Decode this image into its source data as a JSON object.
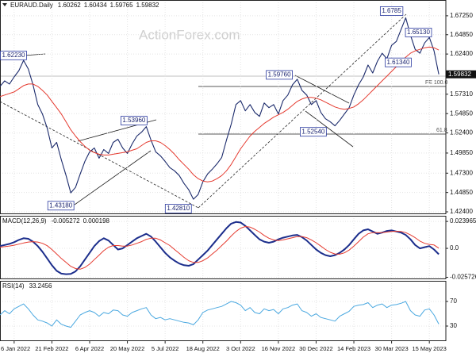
{
  "chart_data": [
    {
      "type": "line",
      "title": "EURAUD.Daily",
      "ohlc": [
        1.60262,
        1.60434,
        1.59765,
        1.59832
      ],
      "watermark": "ActionForex.com",
      "series": [
        {
          "color": "#1b2a6b",
          "values": [
            1.583,
            1.59,
            1.586,
            1.595,
            1.603,
            1.616,
            1.605,
            1.585,
            1.56,
            1.548,
            1.53,
            1.505,
            1.512,
            1.49,
            1.47,
            1.448,
            1.455,
            1.472,
            1.488,
            1.5,
            1.505,
            1.492,
            1.503,
            1.498,
            1.512,
            1.516,
            1.505,
            1.498,
            1.51,
            1.52,
            1.525,
            1.532,
            1.515,
            1.5,
            1.495,
            1.488,
            1.48,
            1.476,
            1.47,
            1.46,
            1.452,
            1.44,
            1.446,
            1.462,
            1.472,
            1.478,
            1.485,
            1.493,
            1.515,
            1.535,
            1.56,
            1.565,
            1.552,
            1.56,
            1.55,
            1.545,
            1.562,
            1.556,
            1.56,
            1.548,
            1.565,
            1.572,
            1.585,
            1.592,
            1.578,
            1.572,
            1.56,
            1.565,
            1.55,
            1.542,
            1.538,
            1.533,
            1.54,
            1.548,
            1.556,
            1.572,
            1.585,
            1.595,
            1.61,
            1.6,
            1.615,
            1.625,
            1.618,
            1.635,
            1.64,
            1.655,
            1.67,
            1.648,
            1.63,
            1.625,
            1.638,
            1.645,
            1.628,
            1.59832
          ]
        },
        {
          "color": "#e53a2f",
          "values": [
            1.57,
            1.572,
            1.574,
            1.576,
            1.58,
            1.584,
            1.586,
            1.586,
            1.583,
            1.578,
            1.572,
            1.564,
            1.556,
            1.548,
            1.538,
            1.528,
            1.52,
            1.513,
            1.507,
            1.502,
            1.499,
            1.497,
            1.496,
            1.496,
            1.497,
            1.498,
            1.499,
            1.5,
            1.502,
            1.504,
            1.508,
            1.512,
            1.514,
            1.514,
            1.512,
            1.508,
            1.503,
            1.497,
            1.49,
            1.484,
            1.478,
            1.471,
            1.466,
            1.463,
            1.462,
            1.463,
            1.466,
            1.47,
            1.476,
            1.484,
            1.494,
            1.504,
            1.512,
            1.52,
            1.526,
            1.531,
            1.536,
            1.54,
            1.544,
            1.547,
            1.55,
            1.554,
            1.559,
            1.564,
            1.567,
            1.569,
            1.569,
            1.568,
            1.566,
            1.563,
            1.56,
            1.557,
            1.555,
            1.554,
            1.555,
            1.557,
            1.561,
            1.566,
            1.572,
            1.578,
            1.584,
            1.59,
            1.596,
            1.602,
            1.608,
            1.614,
            1.62,
            1.625,
            1.628,
            1.63,
            1.632,
            1.633,
            1.632,
            1.629
          ]
        }
      ],
      "xlim": [
        0,
        94.5
      ],
      "ylim": [
        1.421,
        1.6925
      ],
      "yticks": [
        {
          "value": 1.6725,
          "label": "1.67250"
        },
        {
          "value": 1.6485,
          "label": "1.64850"
        },
        {
          "value": 1.624,
          "label": "1.62400"
        },
        {
          "value": 1.5731,
          "label": "1.57310"
        },
        {
          "value": 1.5485,
          "label": "1.54850"
        },
        {
          "value": 1.524,
          "label": "1.52400"
        },
        {
          "value": 1.4985,
          "label": "1.49850"
        },
        {
          "value": 1.473,
          "label": "1.47300"
        },
        {
          "value": 1.4485,
          "label": "1.44850"
        },
        {
          "value": 1.424,
          "label": "1.42400"
        }
      ],
      "annotations": [
        {
          "x": 83,
          "value": 1.6785
        },
        {
          "x": 88.7,
          "value": 1.6513,
          "label": "1.65130"
        },
        {
          "x": 84.4,
          "value": 1.6134,
          "label": "1.61340"
        },
        {
          "x": 2.5,
          "value": 1.6223,
          "label": "1.62230"
        },
        {
          "x": 59.2,
          "value": 1.5976,
          "label": "1.59760"
        },
        {
          "x": 28.4,
          "value": 1.5396,
          "label": "1.53960"
        },
        {
          "x": 66.4,
          "value": 1.5254,
          "label": "1.52540"
        },
        {
          "x": 12.9,
          "value": 1.4318,
          "label": "1.43180"
        },
        {
          "x": 37.8,
          "value": 1.4281,
          "label": "1.42810"
        }
      ],
      "fib_labels": [
        "FE 100.0",
        "61.8"
      ]
    },
    {
      "type": "line",
      "title": "MACD(12,26,9)",
      "series": [
        {
          "color": "#1c2e8c",
          "values": [
            0.0021,
            0.003,
            0.004,
            0.0055,
            0.0075,
            0.009,
            0.0085,
            0.006,
            0.002,
            -0.003,
            -0.009,
            -0.015,
            -0.02,
            -0.0225,
            -0.023,
            -0.0228,
            -0.0205,
            -0.016,
            -0.01,
            -0.004,
            0.002,
            0.0065,
            0.009,
            0.007,
            0.003,
            -0.001,
            0.0,
            0.003,
            0.006,
            0.009,
            0.011,
            0.013,
            0.0105,
            0.006,
            0.001,
            -0.004,
            -0.008,
            -0.011,
            -0.0135,
            -0.015,
            -0.0155,
            -0.014,
            -0.01,
            -0.006,
            -0.002,
            0.003,
            0.008,
            0.013,
            0.018,
            0.022,
            0.0235,
            0.023,
            0.02,
            0.016,
            0.012,
            0.008,
            0.006,
            0.005,
            0.006,
            0.008,
            0.0095,
            0.0105,
            0.0115,
            0.012,
            0.01,
            0.007,
            0.003,
            -0.001,
            -0.004,
            -0.006,
            -0.007,
            -0.006,
            -0.004,
            -0.001,
            0.003,
            0.008,
            0.013,
            0.016,
            0.017,
            0.015,
            0.013,
            0.014,
            0.0155,
            0.016,
            0.015,
            0.014,
            0.012,
            0.008,
            0.003,
            0.0,
            0.001,
            0.002,
            -0.001,
            -0.005272
          ]
        },
        {
          "color": "#e53a2f",
          "values": [
            0.001,
            0.0015,
            0.0021,
            0.0028,
            0.0038,
            0.0048,
            0.0056,
            0.006,
            0.0056,
            0.0045,
            0.0024,
            -0.001,
            -0.005,
            -0.009,
            -0.0125,
            -0.016,
            -0.018,
            -0.0185,
            -0.017,
            -0.014,
            -0.01,
            -0.006,
            -0.002,
            0.001,
            0.0025,
            0.0025,
            0.002,
            0.002,
            0.003,
            0.0045,
            0.006,
            0.008,
            0.009,
            0.009,
            0.0075,
            0.005,
            0.0025,
            -0.001,
            -0.0045,
            -0.008,
            -0.011,
            -0.0125,
            -0.0125,
            -0.011,
            -0.0085,
            -0.005,
            -0.0015,
            0.0025,
            0.0065,
            0.011,
            0.015,
            0.018,
            0.0195,
            0.019,
            0.017,
            0.0145,
            0.0115,
            0.009,
            0.0075,
            0.007,
            0.0075,
            0.0085,
            0.0095,
            0.0105,
            0.0105,
            0.0095,
            0.0075,
            0.005,
            0.002,
            -0.001,
            -0.0035,
            -0.005,
            -0.0052,
            -0.004,
            -0.0015,
            0.002,
            0.006,
            0.01,
            0.013,
            0.014,
            0.014,
            0.014,
            0.0145,
            0.015,
            0.0152,
            0.015,
            0.014,
            0.012,
            0.0095,
            0.0065,
            0.0045,
            0.0035,
            0.003,
            0.000198
          ]
        }
      ],
      "xlim": [
        0,
        94.5
      ],
      "ylim": [
        -0.0275,
        0.029
      ],
      "yticks": [
        0.023965,
        {
          "value": 0,
          "label": "0.0"
        },
        -0.025726
      ]
    },
    {
      "type": "line",
      "title": "RSI(14)",
      "series": [
        {
          "color": "#4aa8e0",
          "values": [
            48,
            55,
            50,
            58,
            62,
            66,
            58,
            48,
            40,
            38,
            35,
            30,
            40,
            33,
            30,
            28,
            38,
            48,
            52,
            55,
            52,
            46,
            52,
            50,
            56,
            55,
            48,
            46,
            52,
            55,
            58,
            60,
            48,
            42,
            44,
            40,
            42,
            40,
            38,
            36,
            35,
            32,
            40,
            52,
            56,
            58,
            60,
            62,
            66,
            70,
            68,
            64,
            55,
            60,
            52,
            50,
            58,
            55,
            57,
            50,
            58,
            60,
            64,
            66,
            55,
            52,
            46,
            50,
            44,
            42,
            40,
            38,
            46,
            50,
            54,
            62,
            64,
            65,
            68,
            60,
            64,
            66,
            60,
            64,
            65,
            67,
            70,
            55,
            48,
            46,
            56,
            58,
            48,
            33.2456
          ]
        }
      ],
      "xlim": [
        0,
        94.5
      ],
      "ylim": [
        5.5,
        103.5
      ],
      "yticks": [
        70,
        30
      ],
      "xticks": [
        {
          "value": 3,
          "label": "6 Jan 2022"
        },
        {
          "value": 11,
          "label": "21 Feb 2022"
        },
        {
          "value": 19,
          "label": "6 Apr 2022"
        },
        {
          "value": 27,
          "label": "20 May 2022"
        },
        {
          "value": 35,
          "label": "5 Jul 2022"
        },
        {
          "value": 43,
          "label": "18 Aug 2022"
        },
        {
          "value": 51,
          "label": "3 Oct 2022"
        },
        {
          "value": 59,
          "label": "16 Nov 2022"
        },
        {
          "value": 67,
          "label": "30 Dec 2022"
        },
        {
          "value": 75,
          "label": "14 Feb 2023"
        },
        {
          "value": 83,
          "label": "30 Mar 2023"
        },
        {
          "value": 91,
          "label": "15 May 2023"
        }
      ]
    }
  ]
}
